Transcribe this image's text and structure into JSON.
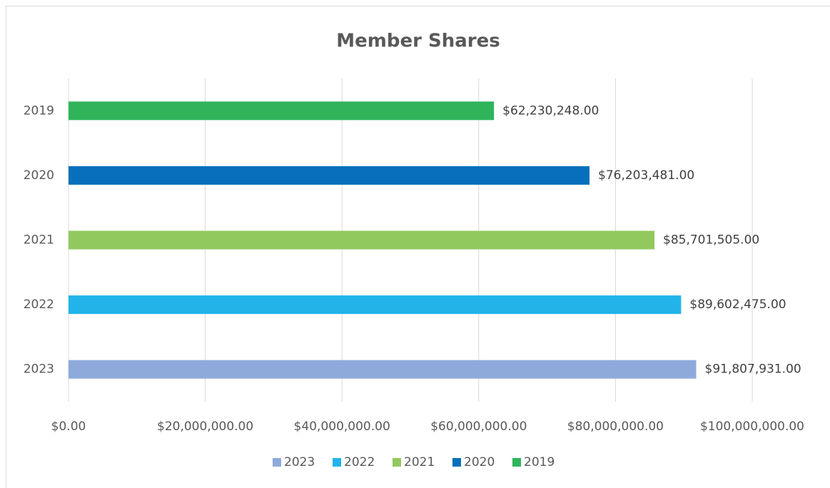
{
  "chart_data": {
    "type": "bar",
    "orientation": "horizontal",
    "title": "Member Shares",
    "categories": [
      "2023",
      "2022",
      "2021",
      "2020",
      "2019"
    ],
    "values": [
      91807931,
      89602475,
      85701505,
      76203481,
      62230248
    ],
    "value_labels": [
      "$91,807,931.00",
      "$89,602,475.00",
      "$85,701,505.00",
      "$76,203,481.00",
      "$62,230,248.00"
    ],
    "colors": [
      "#8eaadb",
      "#22b4e8",
      "#92c95f",
      "#0570bb",
      "#2fb45a"
    ],
    "xlim": [
      0,
      100000000
    ],
    "xticks": [
      {
        "value": 0,
        "label": "$0.00"
      },
      {
        "value": 20000000,
        "label": "$20,000,000.00"
      },
      {
        "value": 40000000,
        "label": "$40,000,000.00"
      },
      {
        "value": 60000000,
        "label": "$60,000,000.00"
      },
      {
        "value": 80000000,
        "label": "$80,000,000.00"
      },
      {
        "value": 100000000,
        "label": "$100,000,000.00"
      }
    ],
    "grid": true,
    "legend": "bottom"
  }
}
